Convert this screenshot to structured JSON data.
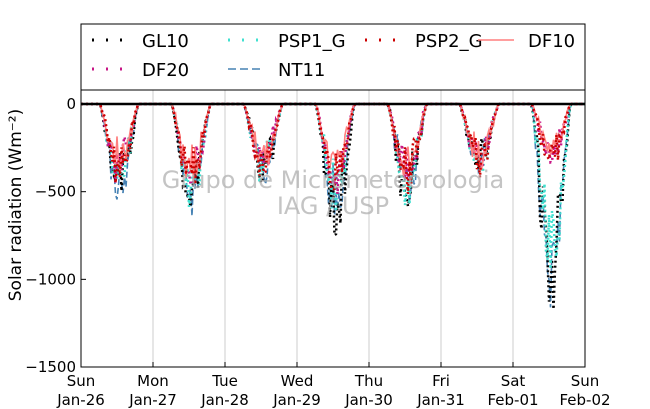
{
  "chart_data": {
    "type": "line",
    "title": "",
    "xlabel": "",
    "ylabel": "Solar radiation (Wm⁻²)",
    "ylim": [
      -1500,
      80
    ],
    "yticks": [
      0,
      -500,
      -1000,
      -1500
    ],
    "ytick_labels": [
      "0",
      "−500",
      "−1000",
      "−1500"
    ],
    "xlim": [
      0,
      7
    ],
    "xticks": [
      {
        "day": "Sun",
        "date": "Jan-26"
      },
      {
        "day": "Mon",
        "date": "Jan-27"
      },
      {
        "day": "Tue",
        "date": "Jan-28"
      },
      {
        "day": "Wed",
        "date": "Jan-29"
      },
      {
        "day": "Thu",
        "date": "Jan-30"
      },
      {
        "day": "Fri",
        "date": "Jan-31"
      },
      {
        "day": "Sat",
        "date": "Feb-01"
      },
      {
        "day": "Sun",
        "date": "Feb-02"
      }
    ],
    "grid": "vertical",
    "legend_position": "top",
    "watermark": [
      "Grupo de Micrometeorologia",
      "IAG / USP"
    ],
    "daily_troughs": {
      "GL10": [
        -560,
        -620,
        -470,
        -800,
        -600,
        -420,
        -1150
      ],
      "PSP1_G": [
        -520,
        -600,
        -460,
        -640,
        -570,
        -410,
        -1100
      ],
      "PSP2_G": [
        -470,
        -560,
        -440,
        -560,
        -540,
        -400,
        -380
      ],
      "DF10": [
        -420,
        -500,
        -400,
        -460,
        -480,
        -380,
        -330
      ],
      "DF20": [
        -450,
        -540,
        -430,
        -520,
        -520,
        -390,
        -360
      ],
      "NT11": [
        -540,
        -620,
        -460,
        -700,
        -590,
        -420,
        -1130
      ]
    },
    "series": [
      {
        "name": "GL10",
        "color": "#000000",
        "style": "dotted"
      },
      {
        "name": "PSP1_G",
        "color": "#40e0d0",
        "style": "dotted"
      },
      {
        "name": "PSP2_G",
        "color": "#cc0000",
        "style": "dotted"
      },
      {
        "name": "DF10",
        "color": "#ff7f7f",
        "style": "solid"
      },
      {
        "name": "DF20",
        "color": "#c71585",
        "style": "dotted"
      },
      {
        "name": "NT11",
        "color": "#4682b4",
        "style": "dashed"
      }
    ]
  }
}
